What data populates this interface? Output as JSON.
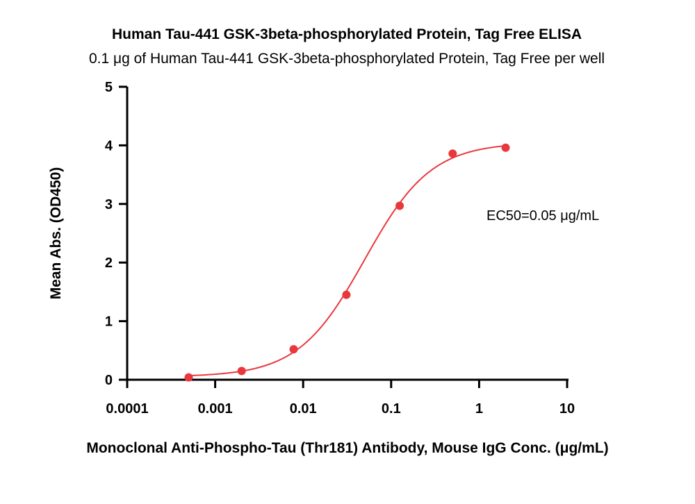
{
  "chart_data": {
    "type": "scatter",
    "title": "Human Tau-441 GSK-3beta-phosphorylated Protein, Tag Free ELISA",
    "subtitle": "0.1 μg of Human Tau-441 GSK-3beta-phosphorylated Protein, Tag Free per well",
    "xlabel": "Monoclonal Anti-Phospho-Tau (Thr181) Antibody, Mouse IgG Conc. (μg/mL)",
    "ylabel": "Mean Abs. (OD450)",
    "x_scale": "log",
    "xlim": [
      0.0001,
      10
    ],
    "ylim": [
      0,
      5
    ],
    "x_tick_values": [
      0.0001,
      0.001,
      0.01,
      0.1,
      1,
      10
    ],
    "x_tick_labels": [
      "0.0001",
      "0.001",
      "0.01",
      "0.1",
      "1",
      "10"
    ],
    "y_tick_values": [
      0,
      1,
      2,
      3,
      4,
      5
    ],
    "y_tick_labels": [
      "0",
      "1",
      "2",
      "3",
      "4",
      "5"
    ],
    "grid": false,
    "series": [
      {
        "x": [
          0.0005,
          0.002,
          0.0078,
          0.031,
          0.125,
          0.5,
          2
        ],
        "y": [
          0.04,
          0.15,
          0.52,
          1.45,
          2.97,
          3.86,
          3.96
        ],
        "color": "#e8383d",
        "marker": "circle",
        "fit": "four-parameter logistic",
        "fit_params": {
          "bottom": 0.05,
          "top": 4.05,
          "ec50": 0.05,
          "hill": 1.15
        }
      }
    ],
    "annotations": [
      "EC50=0.05 μg/mL"
    ]
  }
}
